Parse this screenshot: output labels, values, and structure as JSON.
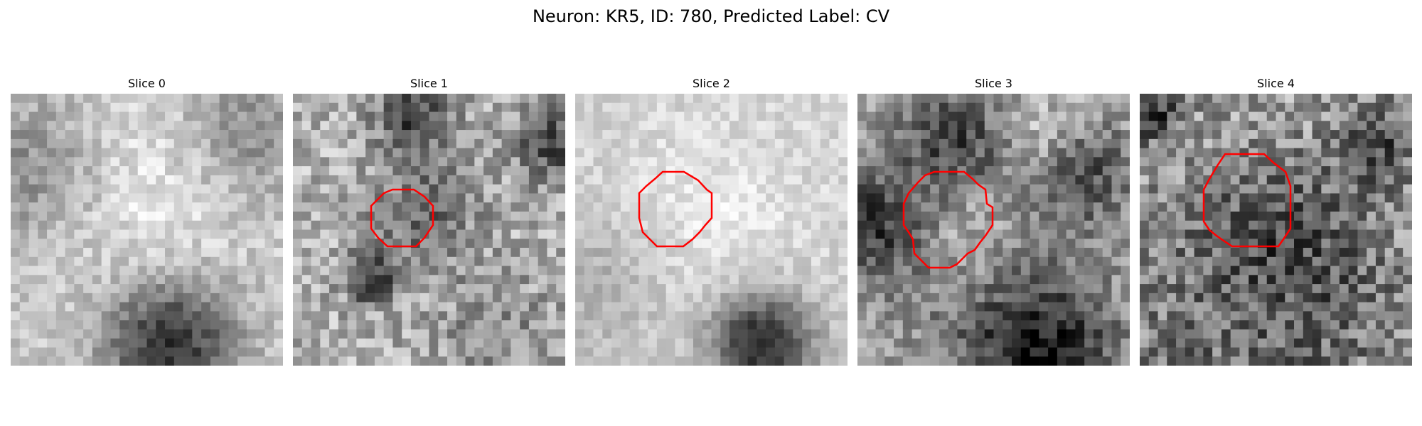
{
  "figure": {
    "suptitle": "Neuron: KR5, ID: 780, Predicted Label: CV",
    "contour_color": "#ff0000",
    "colormap": "gray",
    "grid_size": 30,
    "panels": [
      {
        "title": "Slice 0",
        "has_contour": false,
        "seed": 11
      },
      {
        "title": "Slice 1",
        "has_contour": true,
        "seed": 23
      },
      {
        "title": "Slice 2",
        "has_contour": true,
        "seed": 37
      },
      {
        "title": "Slice 3",
        "has_contour": true,
        "seed": 51
      },
      {
        "title": "Slice 4",
        "has_contour": true,
        "seed": 67
      }
    ]
  }
}
